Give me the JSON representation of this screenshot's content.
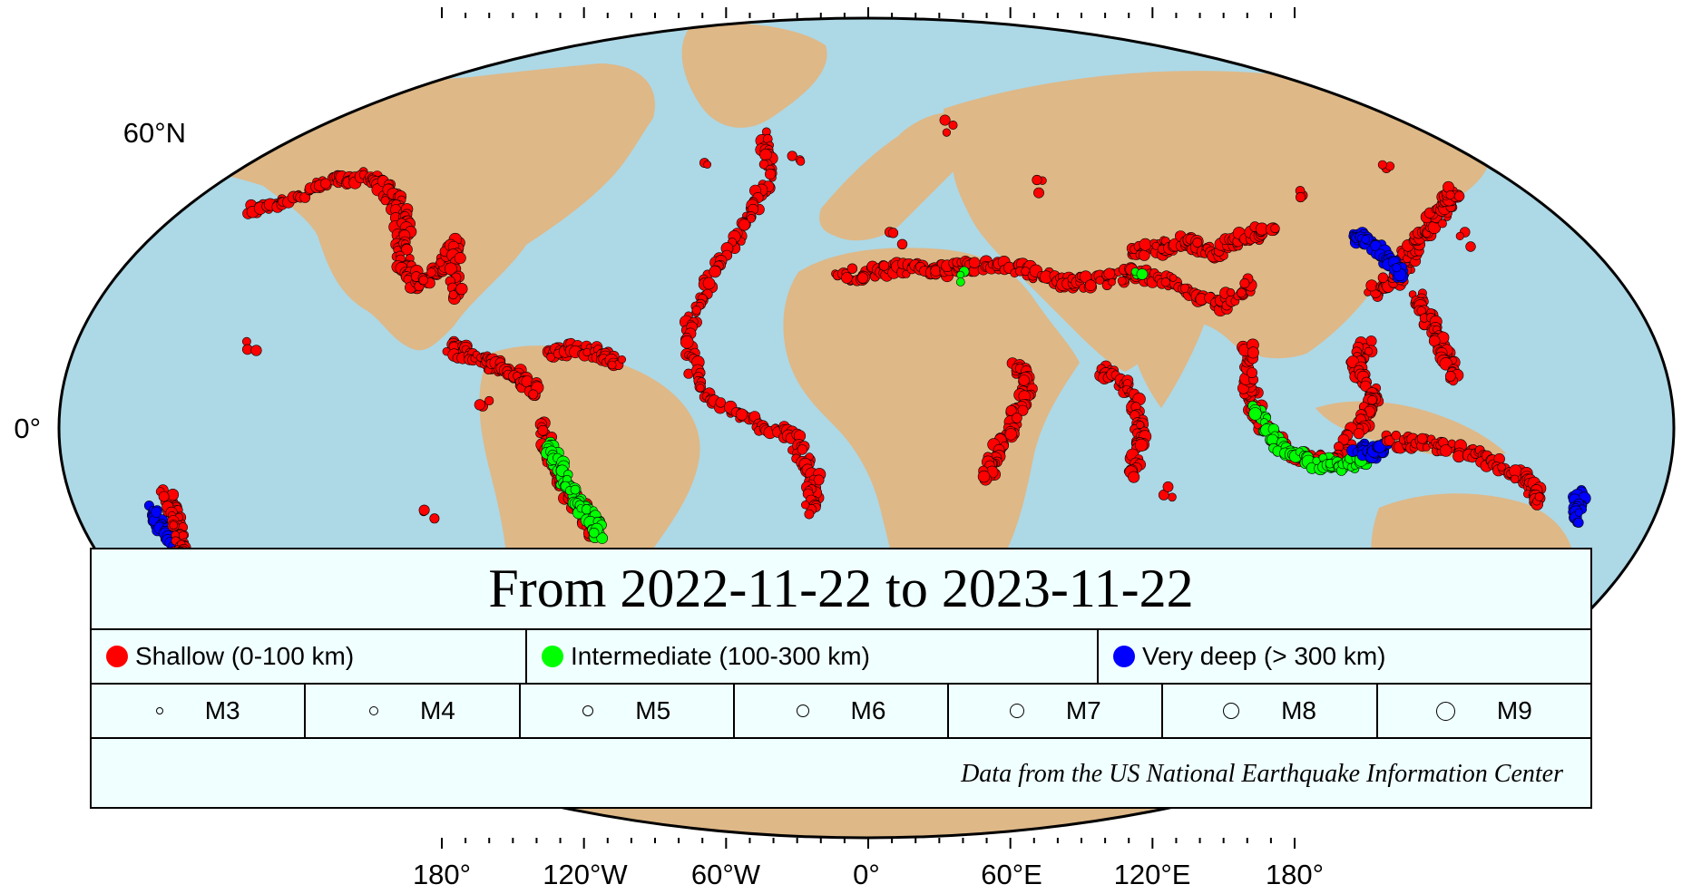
{
  "colors": {
    "ocean": "#add8e6",
    "land": "#deb887",
    "shallow": "#ff0000",
    "intermediate": "#00ff00",
    "very_deep": "#0000ff",
    "legend_background": "#f0ffff"
  },
  "axes": {
    "x_labels": [
      "180°",
      "120°W",
      "60°W",
      "0°",
      "60°E",
      "120°E",
      "180°"
    ],
    "y_labels": [
      "60°N",
      "0°"
    ]
  },
  "legend": {
    "title": "From 2022-11-22 to 2023-11-22",
    "depth_classes": [
      {
        "label": "Shallow (0-100 km)",
        "color": "#ff0000"
      },
      {
        "label": "Intermediate (100-300 km)",
        "color": "#00ff00"
      },
      {
        "label": "Very deep (> 300 km)",
        "color": "#0000ff"
      }
    ],
    "magnitudes": [
      {
        "label": "M3",
        "magnitude": 3
      },
      {
        "label": "M4",
        "magnitude": 4
      },
      {
        "label": "M5",
        "magnitude": 5
      },
      {
        "label": "M6",
        "magnitude": 6
      },
      {
        "label": "M7",
        "magnitude": 7
      },
      {
        "label": "M8",
        "magnitude": 8
      },
      {
        "label": "M9",
        "magnitude": 9
      }
    ],
    "credit": "Data from the US National Earthquake Information Center"
  },
  "earthquake_belts": [
    {
      "name": "aleutian-alaska",
      "depth": "shallow",
      "points": [
        [
          -170,
          52
        ],
        [
          -160,
          55
        ],
        [
          -150,
          60
        ],
        [
          -140,
          60
        ],
        [
          -130,
          54
        ],
        [
          -125,
          48
        ]
      ]
    },
    {
      "name": "western-us",
      "depth": "shallow",
      "points": [
        [
          -125,
          48
        ],
        [
          -122,
          40
        ],
        [
          -117,
          34
        ],
        [
          -112,
          38
        ],
        [
          -110,
          44
        ],
        [
          -105,
          30
        ]
      ]
    },
    {
      "name": "mexico-central-america",
      "depth": "shallow",
      "points": [
        [
          -105,
          20
        ],
        [
          -98,
          17
        ],
        [
          -92,
          15
        ],
        [
          -86,
          12
        ],
        [
          -82,
          8
        ]
      ]
    },
    {
      "name": "caribbean",
      "depth": "shallow",
      "points": [
        [
          -80,
          18
        ],
        [
          -74,
          19
        ],
        [
          -68,
          18
        ],
        [
          -62,
          15
        ]
      ]
    },
    {
      "name": "andes",
      "depth": "shallow",
      "points": [
        [
          -80,
          0
        ],
        [
          -78,
          -8
        ],
        [
          -75,
          -15
        ],
        [
          -71,
          -20
        ],
        [
          -70,
          -26
        ]
      ]
    },
    {
      "name": "andes-intermediate",
      "depth": "intermediate",
      "points": [
        [
          -79,
          -4
        ],
        [
          -76,
          -10
        ],
        [
          -72,
          -18
        ],
        [
          -69,
          -22
        ],
        [
          -68,
          -26
        ]
      ]
    },
    {
      "name": "mid-atlantic-ridge",
      "depth": "shallow",
      "points": [
        [
          -30,
          70
        ],
        [
          -28,
          60
        ],
        [
          -32,
          50
        ],
        [
          -40,
          38
        ],
        [
          -45,
          25
        ],
        [
          -42,
          10
        ],
        [
          -30,
          2
        ],
        [
          -18,
          -2
        ],
        [
          -13,
          -12
        ],
        [
          -14,
          -20
        ]
      ]
    },
    {
      "name": "mediterranean-iran-himalaya",
      "depth": "shallow",
      "points": [
        [
          -8,
          36
        ],
        [
          5,
          38
        ],
        [
          15,
          38
        ],
        [
          22,
          38
        ],
        [
          30,
          39
        ],
        [
          40,
          38
        ],
        [
          50,
          35
        ],
        [
          60,
          35
        ],
        [
          70,
          37
        ],
        [
          80,
          35
        ],
        [
          90,
          29
        ],
        [
          100,
          35
        ]
      ]
    },
    {
      "name": "central-asia",
      "depth": "shallow",
      "points": [
        [
          70,
          42
        ],
        [
          78,
          43
        ],
        [
          85,
          45
        ],
        [
          92,
          42
        ],
        [
          100,
          45
        ],
        [
          110,
          48
        ]
      ]
    },
    {
      "name": "east-african-rift",
      "depth": "shallow",
      "points": [
        [
          38,
          15
        ],
        [
          40,
          10
        ],
        [
          36,
          0
        ],
        [
          32,
          -6
        ],
        [
          30,
          -12
        ]
      ]
    },
    {
      "name": "carlsberg-indian-ridge",
      "depth": "shallow",
      "points": [
        [
          58,
          14
        ],
        [
          65,
          10
        ],
        [
          68,
          0
        ],
        [
          66,
          -12
        ]
      ]
    },
    {
      "name": "japan-kuril-kamchatka",
      "depth": "shallow",
      "points": [
        [
          130,
          32
        ],
        [
          138,
          36
        ],
        [
          142,
          40
        ],
        [
          146,
          44
        ],
        [
          152,
          48
        ],
        [
          160,
          54
        ],
        [
          165,
          57
        ]
      ]
    },
    {
      "name": "japan-deep",
      "depth": "very_deep",
      "points": [
        [
          131,
          46
        ],
        [
          135,
          44
        ],
        [
          138,
          40
        ],
        [
          140,
          37
        ]
      ]
    },
    {
      "name": "philippines-indonesia",
      "depth": "shallow",
      "points": [
        [
          126,
          20
        ],
        [
          122,
          15
        ],
        [
          126,
          8
        ],
        [
          123,
          2
        ],
        [
          115,
          -8
        ],
        [
          105,
          -6
        ],
        [
          97,
          2
        ],
        [
          95,
          10
        ],
        [
          96,
          20
        ]
      ]
    },
    {
      "name": "sunda-intermediate",
      "depth": "intermediate",
      "points": [
        [
          96,
          5
        ],
        [
          102,
          -4
        ],
        [
          110,
          -8
        ],
        [
          118,
          -9
        ],
        [
          124,
          -8
        ]
      ]
    },
    {
      "name": "banda-deep",
      "depth": "very_deep",
      "points": [
        [
          122,
          -5
        ],
        [
          126,
          -6
        ],
        [
          128,
          -5
        ]
      ]
    },
    {
      "name": "izu-bonin-marianas",
      "depth": "shallow",
      "points": [
        [
          142,
          32
        ],
        [
          143,
          25
        ],
        [
          145,
          18
        ],
        [
          146,
          12
        ]
      ]
    },
    {
      "name": "new-guinea-solomons-vanuatu",
      "depth": "shallow",
      "points": [
        [
          130,
          -3
        ],
        [
          140,
          -4
        ],
        [
          150,
          -6
        ],
        [
          158,
          -9
        ],
        [
          166,
          -14
        ],
        [
          168,
          -18
        ]
      ]
    },
    {
      "name": "tonga-fiji",
      "depth": "very_deep",
      "points": [
        [
          178,
          -16
        ],
        [
          179,
          -20
        ],
        [
          -178,
          -24
        ],
        [
          -176,
          -28
        ]
      ]
    },
    {
      "name": "tonga-shallow",
      "depth": "shallow",
      "points": [
        [
          -175,
          -16
        ],
        [
          -174,
          -22
        ],
        [
          -176,
          -30
        ],
        [
          -178,
          -35
        ]
      ]
    },
    {
      "name": "kermadec-new-zealand",
      "depth": "intermediate",
      "points": [
        [
          175,
          -34
        ],
        [
          177,
          -38
        ],
        [
          176,
          -40
        ]
      ]
    }
  ],
  "scattered_events": [
    {
      "depth": "shallow",
      "lon": -155,
      "lat": 19
    },
    {
      "depth": "shallow",
      "lon": -45,
      "lat": 62
    },
    {
      "depth": "shallow",
      "lon": 8,
      "lat": 46
    },
    {
      "depth": "shallow",
      "lon": 25,
      "lat": 72
    },
    {
      "depth": "shallow",
      "lon": 50,
      "lat": 58
    },
    {
      "depth": "shallow",
      "lon": 120,
      "lat": 55
    },
    {
      "depth": "shallow",
      "lon": 150,
      "lat": 63
    },
    {
      "depth": "shallow",
      "lon": -95,
      "lat": 5
    },
    {
      "depth": "shallow",
      "lon": -110,
      "lat": -20
    },
    {
      "depth": "shallow",
      "lon": 75,
      "lat": -15
    },
    {
      "depth": "shallow",
      "lon": -20,
      "lat": 64
    },
    {
      "depth": "shallow",
      "lon": 160,
      "lat": 45
    },
    {
      "depth": "intermediate",
      "lon": 70,
      "lat": 36
    },
    {
      "depth": "intermediate",
      "lon": 26,
      "lat": 36
    },
    {
      "depth": "very_deep",
      "lon": -178,
      "lat": -20
    }
  ]
}
